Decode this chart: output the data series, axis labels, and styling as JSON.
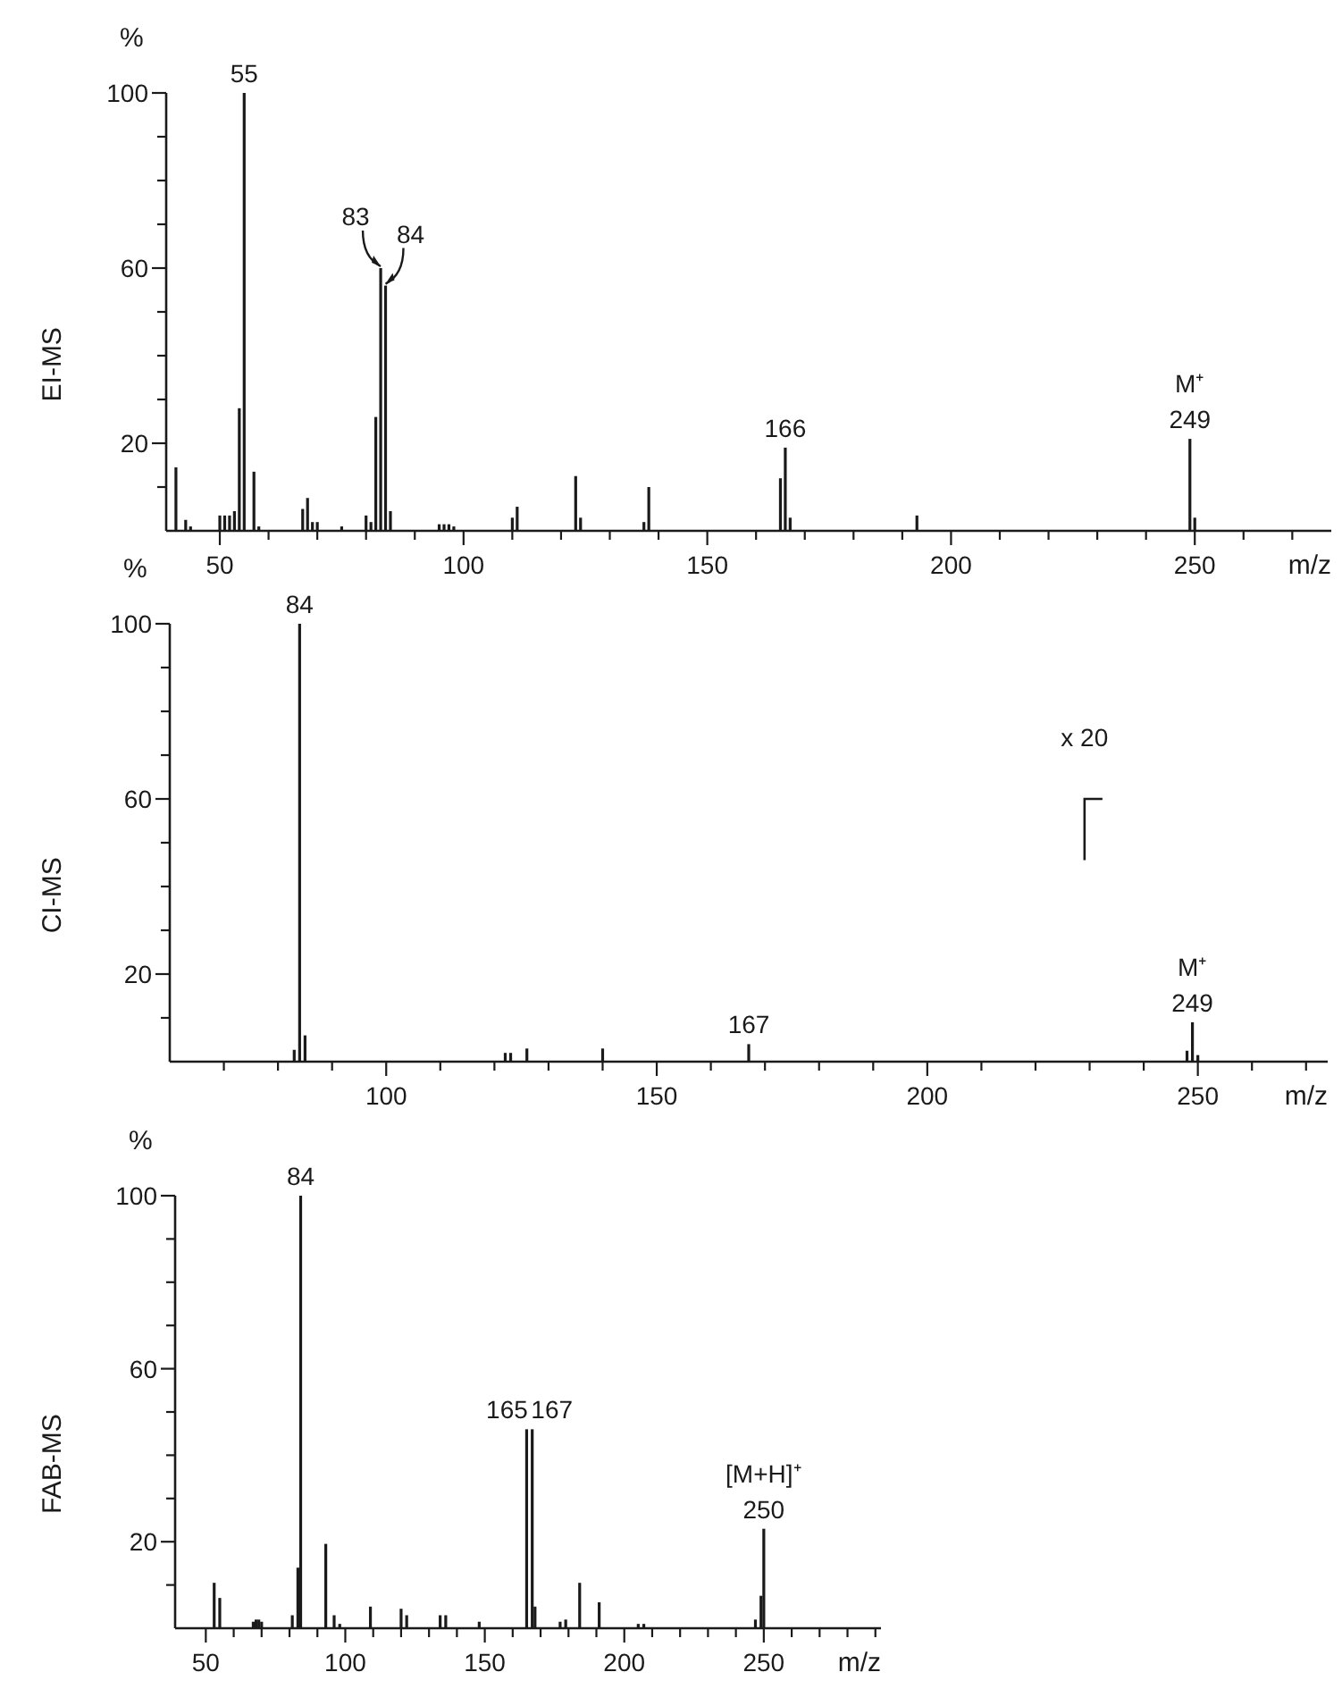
{
  "chart_data": [
    {
      "type": "bar",
      "ylabel": "EI-MS",
      "xlabel": "m/z",
      "color": "#1a1a1a",
      "xlim": [
        39,
        278
      ],
      "ylim": [
        0,
        100
      ],
      "xticks": [
        50,
        {
          "value": 60,
          "label": null
        },
        {
          "value": 70,
          "label": null
        },
        {
          "value": 80,
          "label": null
        },
        {
          "value": 90,
          "label": null
        },
        100,
        {
          "value": 110,
          "label": null
        },
        {
          "value": 120,
          "label": null
        },
        {
          "value": 130,
          "label": null
        },
        {
          "value": 140,
          "label": null
        },
        150,
        {
          "value": 160,
          "label": null
        },
        {
          "value": 170,
          "label": null
        },
        {
          "value": 180,
          "label": null
        },
        {
          "value": 190,
          "label": null
        },
        200,
        {
          "value": 210,
          "label": null
        },
        {
          "value": 220,
          "label": null
        },
        {
          "value": 230,
          "label": null
        },
        {
          "value": 240,
          "label": null
        },
        250,
        {
          "value": 260,
          "label": null
        },
        {
          "value": 270,
          "label": null
        }
      ],
      "yticks": [
        {
          "value": 10,
          "label": null
        },
        20,
        {
          "value": 30,
          "label": null
        },
        {
          "value": 40,
          "label": null
        },
        {
          "value": 50,
          "label": null
        },
        60,
        {
          "value": 70,
          "label": null
        },
        {
          "value": 80,
          "label": null
        },
        {
          "value": 90,
          "label": null
        },
        100
      ],
      "x": [
        41,
        43,
        44,
        50,
        51,
        52,
        53,
        54,
        55,
        57,
        58,
        67,
        68,
        69,
        70,
        75,
        80,
        81,
        82,
        83,
        84,
        85,
        95,
        96,
        97,
        98,
        110,
        111,
        123,
        124,
        137,
        138,
        165,
        166,
        167,
        193,
        249,
        250
      ],
      "values": [
        14.5,
        2.5,
        1,
        3.5,
        3.5,
        3.5,
        4.5,
        28,
        100,
        13.5,
        1,
        5,
        7.5,
        2,
        2,
        1,
        3.5,
        2,
        26,
        60,
        56,
        4.5,
        1.5,
        1.5,
        1.5,
        1,
        3,
        5.5,
        12.5,
        3,
        2,
        10,
        12,
        19,
        3,
        3.5,
        21,
        3
      ],
      "annotations": [
        "%",
        {
          "text": "55",
          "x": 55,
          "y": 100
        },
        {
          "text": "83",
          "x": 83,
          "y": 60
        },
        {
          "text": "84",
          "x": 84,
          "y": 56
        },
        {
          "text": "166",
          "x": 166,
          "y": 19
        },
        {
          "text": "249",
          "x": 249,
          "y": 21
        },
        {
          "text": "M⁺",
          "x": 249,
          "y": 21
        }
      ]
    },
    {
      "type": "bar",
      "ylabel": "CI-MS",
      "xlabel": "m/z",
      "color": "#1a1a1a",
      "xlim": [
        60,
        274
      ],
      "ylim": [
        0,
        100
      ],
      "xticks": [
        {
          "value": 70,
          "label": null
        },
        {
          "value": 80,
          "label": null
        },
        {
          "value": 90,
          "label": null
        },
        100,
        {
          "value": 110,
          "label": null
        },
        {
          "value": 120,
          "label": null
        },
        {
          "value": 130,
          "label": null
        },
        {
          "value": 140,
          "label": null
        },
        150,
        {
          "value": 160,
          "label": null
        },
        {
          "value": 170,
          "label": null
        },
        {
          "value": 180,
          "label": null
        },
        {
          "value": 190,
          "label": null
        },
        200,
        {
          "value": 210,
          "label": null
        },
        {
          "value": 220,
          "label": null
        },
        {
          "value": 230,
          "label": null
        },
        {
          "value": 240,
          "label": null
        },
        250,
        {
          "value": 260,
          "label": null
        },
        {
          "value": 270,
          "label": null
        }
      ],
      "yticks": [
        {
          "value": 10,
          "label": null
        },
        20,
        {
          "value": 30,
          "label": null
        },
        {
          "value": 40,
          "label": null
        },
        {
          "value": 50,
          "label": null
        },
        60,
        {
          "value": 70,
          "label": null
        },
        {
          "value": 80,
          "label": null
        },
        {
          "value": 90,
          "label": null
        },
        100
      ],
      "x": [
        83,
        84,
        85,
        122,
        123,
        126,
        140,
        167,
        248,
        249,
        250
      ],
      "values": [
        2.7,
        100,
        6,
        2,
        2,
        3,
        3,
        4,
        2.5,
        9,
        1.5
      ],
      "annotations": [
        "%",
        {
          "text": "84",
          "x": 84,
          "y": 100
        },
        {
          "text": "167",
          "x": 167,
          "y": 4
        },
        {
          "text": "249",
          "x": 249,
          "y": 9
        },
        {
          "text": "M⁺",
          "x": 249,
          "y": 9
        },
        "x 20"
      ]
    },
    {
      "type": "bar",
      "ylabel": "FAB-MS",
      "xlabel": "m/z",
      "color": "#1a1a1a",
      "xlim": [
        39,
        292
      ],
      "ylim": [
        0,
        100
      ],
      "xticks": [
        50,
        {
          "value": 60,
          "label": null
        },
        {
          "value": 70,
          "label": null
        },
        {
          "value": 80,
          "label": null
        },
        {
          "value": 90,
          "label": null
        },
        100,
        {
          "value": 110,
          "label": null
        },
        {
          "value": 120,
          "label": null
        },
        {
          "value": 130,
          "label": null
        },
        {
          "value": 140,
          "label": null
        },
        150,
        {
          "value": 160,
          "label": null
        },
        {
          "value": 170,
          "label": null
        },
        {
          "value": 180,
          "label": null
        },
        {
          "value": 190,
          "label": null
        },
        200,
        {
          "value": 210,
          "label": null
        },
        {
          "value": 220,
          "label": null
        },
        {
          "value": 230,
          "label": null
        },
        {
          "value": 240,
          "label": null
        },
        250,
        {
          "value": 260,
          "label": null
        },
        {
          "value": 270,
          "label": null
        },
        {
          "value": 280,
          "label": null
        },
        {
          "value": 290,
          "label": null
        }
      ],
      "yticks": [
        {
          "value": 10,
          "label": null
        },
        20,
        {
          "value": 30,
          "label": null
        },
        {
          "value": 40,
          "label": null
        },
        {
          "value": 50,
          "label": null
        },
        60,
        {
          "value": 70,
          "label": null
        },
        {
          "value": 80,
          "label": null
        },
        {
          "value": 90,
          "label": null
        },
        100
      ],
      "x": [
        53,
        55,
        67,
        68,
        69,
        70,
        81,
        83,
        84,
        93,
        96,
        98,
        109,
        120,
        122,
        134,
        136,
        148,
        165,
        167,
        168,
        177,
        179,
        184,
        191,
        205,
        207,
        247,
        249,
        250
      ],
      "values": [
        10.5,
        7,
        1.5,
        2,
        2,
        1.5,
        3,
        14,
        100,
        19.5,
        3,
        1,
        5,
        4.5,
        3,
        3,
        3,
        1.5,
        46,
        46,
        5,
        1.5,
        2,
        10.5,
        6,
        1,
        1,
        2,
        7.5,
        23
      ],
      "annotations": [
        "%",
        {
          "text": "84",
          "x": 84,
          "y": 100
        },
        {
          "text": "165",
          "x": 165,
          "y": 46
        },
        {
          "text": "167",
          "x": 167,
          "y": 46
        },
        {
          "text": "250",
          "x": 250,
          "y": 23
        },
        {
          "text": "[M+H]⁺",
          "x": 250,
          "y": 23
        }
      ]
    }
  ]
}
